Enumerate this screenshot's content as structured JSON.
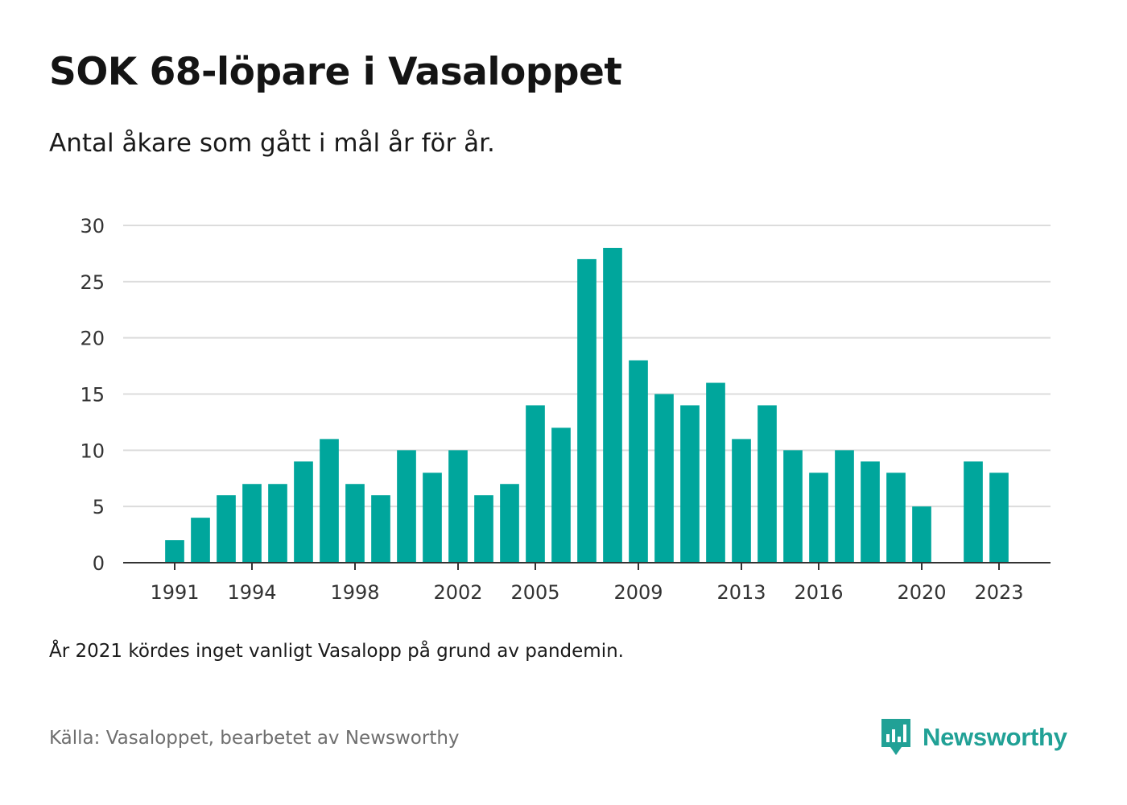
{
  "title": "SOK 68-löpare i Vasaloppet",
  "subtitle": "Antal åkare som gått i mål år för år.",
  "note": "År 2021 kördes inget vanligt Vasalopp på grund av pandemin.",
  "source": "Källa: Vasaloppet, bearbetet av Newsworthy",
  "brand": {
    "name": "Newsworthy",
    "icon": "newsworthy-logo-icon",
    "color": "#21a196"
  },
  "chart_data": {
    "type": "bar",
    "title": "SOK 68-löpare i Vasaloppet",
    "subtitle": "Antal åkare som gått i mål år för år.",
    "xlabel": "",
    "ylabel": "",
    "ylim": [
      0,
      30
    ],
    "yticks": [
      0,
      5,
      10,
      15,
      20,
      25,
      30
    ],
    "xticks": [
      1991,
      1994,
      1998,
      2002,
      2005,
      2009,
      2013,
      2016,
      2020,
      2023
    ],
    "x_range": [
      1989,
      2025
    ],
    "grid": true,
    "bar_color": "#00a69c",
    "categories": [
      1991,
      1992,
      1993,
      1994,
      1995,
      1996,
      1997,
      1998,
      1999,
      2000,
      2001,
      2002,
      2003,
      2004,
      2005,
      2006,
      2007,
      2008,
      2009,
      2010,
      2011,
      2012,
      2013,
      2014,
      2015,
      2016,
      2017,
      2018,
      2019,
      2020,
      2021,
      2022,
      2023
    ],
    "values": [
      2,
      4,
      6,
      7,
      7,
      9,
      11,
      7,
      6,
      10,
      8,
      10,
      6,
      7,
      14,
      12,
      27,
      28,
      18,
      15,
      14,
      16,
      11,
      14,
      10,
      8,
      10,
      9,
      8,
      5,
      null,
      9,
      8
    ]
  }
}
